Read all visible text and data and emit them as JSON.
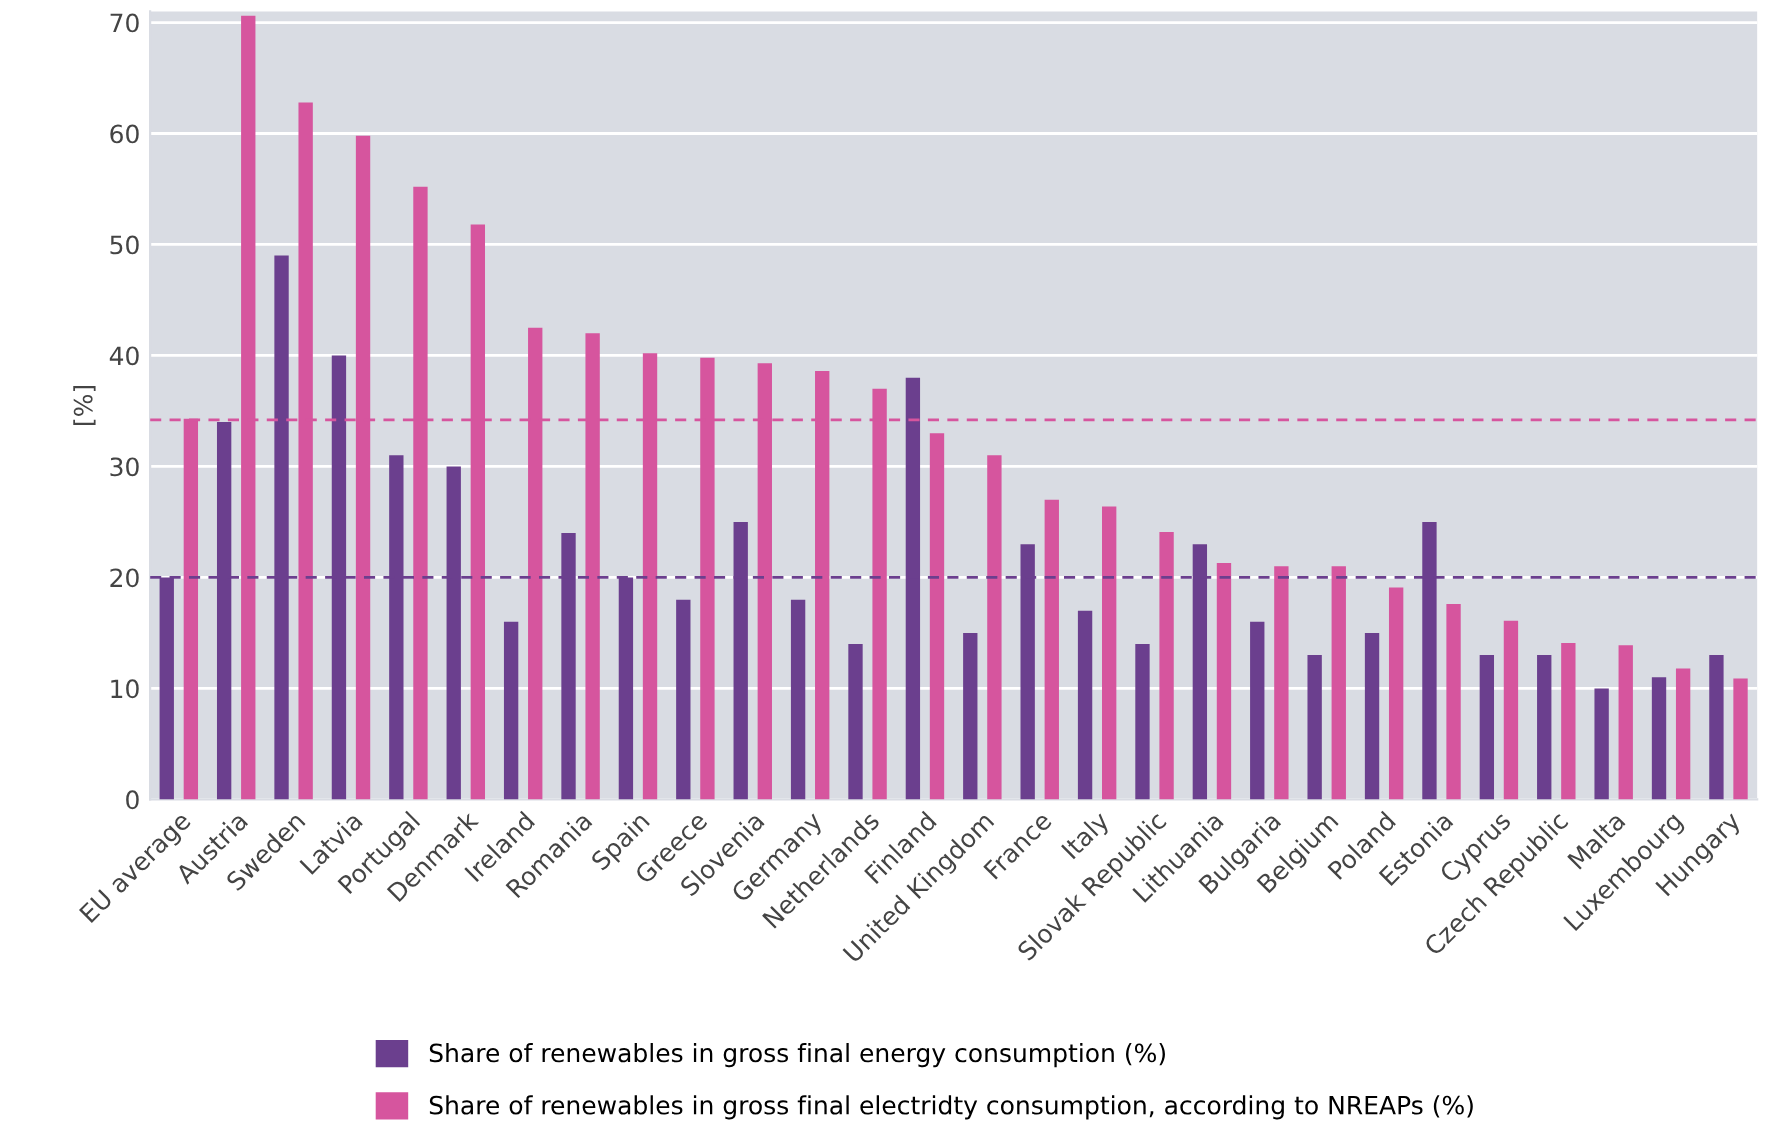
{
  "chart_data": {
    "type": "bar",
    "ylabel": "[%]",
    "categories": [
      "EU average",
      "Austria",
      "Sweden",
      "Latvia",
      "Portugal",
      "Denmark",
      "Ireland",
      "Romania",
      "Spain",
      "Greece",
      "Slovenia",
      "Germany",
      "Netherlands",
      "Finland",
      "United Kingdom",
      "France",
      "Italy",
      "Slovak Republic",
      "Lithuania",
      "Bulgaria",
      "Belgium",
      "Poland",
      "Estonia",
      "Cyprus",
      "Czech Republic",
      "Malta",
      "Luxembourg",
      "Hungary"
    ],
    "series": [
      {
        "name": "Share of renewables in gross final energy consumption (%)",
        "color": "#6b3f8e",
        "values": [
          20,
          34,
          49,
          40,
          31,
          30,
          16,
          24,
          20,
          18,
          25,
          18,
          14,
          38,
          15,
          23,
          17,
          14,
          23,
          16,
          13,
          15,
          25,
          13,
          13,
          10,
          11,
          13
        ]
      },
      {
        "name": "Share of renewables in gross final electridty consumption, according to NREAPs (%)",
        "color": "#d6559e",
        "values": [
          34.3,
          70.6,
          62.8,
          59.8,
          55.2,
          51.8,
          42.5,
          42,
          40.2,
          39.8,
          39.3,
          38.6,
          37,
          33,
          31,
          27,
          26.4,
          24.1,
          21.3,
          21,
          21,
          19.1,
          17.6,
          16.1,
          14.1,
          13.9,
          11.8,
          10.9
        ]
      }
    ],
    "ylim": [
      0,
      71
    ],
    "yticks": [
      0,
      10,
      20,
      30,
      40,
      50,
      60,
      70
    ],
    "grid": "y",
    "legend": "bottom",
    "ref_lines": [
      {
        "axis": "y",
        "value": 20,
        "color": "#6b3f8e",
        "line_style": "dashed"
      },
      {
        "axis": "y",
        "value": 34.2,
        "color": "#d6559e",
        "line_style": "dashed"
      }
    ]
  }
}
